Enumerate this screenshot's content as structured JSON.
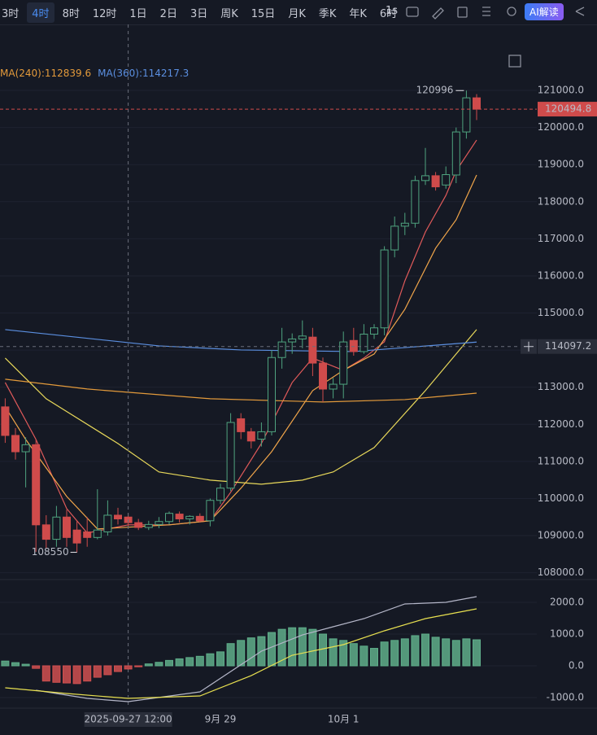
{
  "toolbar": {
    "items": [
      "3时",
      "4时",
      "8时",
      "12时",
      "1日",
      "2日",
      "3日",
      "周K",
      "15日",
      "月K",
      "季K",
      "年K",
      "6时"
    ],
    "active": 1,
    "speed": "1s",
    "ai": "AI解读"
  },
  "chart_data": [
    {
      "type": "candlestick",
      "categories": [
        null,
        null,
        null,
        null,
        null,
        null,
        null,
        null,
        null,
        null,
        null,
        null,
        null,
        null,
        null,
        null,
        null,
        null,
        null,
        null,
        null,
        "9月 29",
        null,
        null,
        null,
        null,
        null,
        null,
        null,
        null,
        null,
        null,
        null,
        "10月 1",
        null,
        null,
        null,
        null,
        null,
        null,
        null,
        null,
        null,
        null,
        null,
        null,
        null
      ],
      "open": [
        112470,
        111700,
        111260,
        111450,
        109290,
        108900,
        109500,
        109150,
        109100,
        108950,
        109100,
        109550,
        109500,
        109350,
        109220,
        109300,
        109380,
        109580,
        109450,
        109520,
        109400,
        109950,
        110280,
        112150,
        111800,
        111600,
        111800,
        113800,
        114220,
        114300,
        114350,
        113650,
        112950,
        113080,
        114260,
        113960,
        114430,
        114600,
        116700,
        117340,
        117420,
        118570,
        118700,
        118450,
        118720,
        119880,
        120800
      ],
      "high": [
        112700,
        111900,
        111650,
        111600,
        109550,
        109800,
        109700,
        109400,
        109500,
        110250,
        109950,
        109750,
        109600,
        109450,
        109400,
        109500,
        109650,
        109650,
        109550,
        109600,
        110000,
        110400,
        112300,
        112300,
        111900,
        112050,
        114000,
        114600,
        114450,
        114800,
        114600,
        113800,
        113250,
        114500,
        114600,
        114700,
        114700,
        116800,
        117600,
        117700,
        118700,
        119450,
        118800,
        118950,
        120000,
        120996.0,
        120900
      ],
      "low": [
        111500,
        111050,
        110300,
        108566.1,
        108650,
        108700,
        108700,
        108550,
        108700,
        108900,
        109000,
        109300,
        109250,
        109150,
        109150,
        109200,
        109300,
        109350,
        109300,
        109350,
        109250,
        109850,
        110200,
        111600,
        111350,
        111400,
        111700,
        113500,
        113900,
        114050,
        113300,
        112600,
        112700,
        112700,
        113850,
        113900,
        114300,
        114400,
        116500,
        117100,
        117300,
        118450,
        118300,
        118350,
        118500,
        119700,
        120200
      ],
      "close": [
        111700,
        111260,
        111450,
        109290,
        108900,
        109500,
        108950,
        108800,
        108950,
        109150,
        109550,
        109450,
        109350,
        109220,
        109300,
        109380,
        109600,
        109450,
        109520,
        109400,
        109950,
        110280,
        112050,
        111800,
        111550,
        111800,
        113800,
        114220,
        114300,
        114380,
        113650,
        112950,
        113080,
        114220,
        113960,
        114430,
        114600,
        116700,
        117340,
        117420,
        118570,
        118700,
        118400,
        118730,
        119880,
        120800,
        120494.8
      ],
      "up_color": "#4fa37f",
      "down_color": "#cf4b4b",
      "ylim": [
        107860,
        122120
      ],
      "yticks": [
        {
          "value": 121000,
          "label": "121000.0"
        },
        {
          "value": 120000,
          "label": "120000.0"
        },
        {
          "value": 119000,
          "label": "119000.0"
        },
        {
          "value": 118000,
          "label": "118000.0"
        },
        {
          "value": 117000,
          "label": "117000.0"
        },
        {
          "value": 116000,
          "label": "116000.0"
        },
        {
          "value": 115000,
          "label": "115000.0"
        },
        {
          "value": 114000,
          "label": "114000.0"
        },
        {
          "value": 113000,
          "label": "113000.0"
        },
        {
          "value": 112000,
          "label": "112000.0"
        },
        {
          "value": 111000,
          "label": "111000.0"
        },
        {
          "value": 110000,
          "label": "110000.0"
        },
        {
          "value": 109000,
          "label": "109000.0"
        },
        {
          "value": 108000,
          "label": "108000.0"
        }
      ],
      "series": [
        {
          "color": "#e05a5a",
          "x": [
            0,
            3,
            6,
            8,
            12,
            16,
            20,
            22,
            25,
            28,
            30,
            33,
            35,
            37,
            39,
            41,
            43,
            44,
            46
          ],
          "values": [
            113127,
            111592,
            109728,
            109070,
            109290,
            109290,
            109400,
            110167,
            111483,
            113127,
            113785,
            113456,
            113785,
            114224,
            115868,
            117184,
            118170,
            118828,
            119661
          ]
        },
        {
          "color": "#f0a54a",
          "x": [
            0,
            2,
            6,
            9,
            16,
            20,
            23,
            26,
            30,
            33,
            36,
            39,
            42,
            44,
            46
          ],
          "values": [
            112470,
            111592,
            110057,
            109180,
            109290,
            109400,
            110277,
            111263,
            112908,
            113456,
            113895,
            115101,
            116746,
            117513,
            118719
          ]
        },
        {
          "color": "#e8d85a",
          "x": [
            0,
            4,
            11,
            15,
            20,
            25,
            29,
            32,
            36,
            41,
            46
          ],
          "values": [
            113785,
            112689,
            111483,
            110715,
            110496,
            110386,
            110496,
            110715,
            111373,
            112908,
            114553
          ]
        },
        {
          "name": "MA(240):",
          "color": "#e39a3b",
          "x": [
            0,
            8,
            20,
            31,
            39,
            46
          ],
          "values": [
            113215,
            112952,
            112689,
            112601,
            112666,
            112839.6
          ]
        },
        {
          "name": "MA(360):",
          "color": "#5b8fe0",
          "x": [
            0,
            15,
            23,
            34,
            46
          ],
          "values": [
            114553,
            114114,
            114004,
            113960,
            114217.3
          ]
        }
      ],
      "crosshair": {
        "price": 114097.2,
        "time": "2025-09-27 12:00"
      }
    },
    {
      "type": "bar",
      "values": [
        150,
        100,
        50,
        -80,
        -480,
        -520,
        -540,
        -560,
        -480,
        -360,
        -280,
        -180,
        -100,
        -30,
        60,
        110,
        170,
        220,
        260,
        300,
        380,
        440,
        700,
        800,
        880,
        920,
        1050,
        1150,
        1200,
        1200,
        1150,
        1000,
        850,
        800,
        700,
        620,
        550,
        750,
        800,
        850,
        950,
        1000,
        900,
        850,
        800,
        850,
        820
      ],
      "up_color": "#5fae8a",
      "down_color": "#d05050",
      "ylim": [
        -1333,
        2641
      ],
      "yticks": [
        {
          "value": 2000,
          "label": "2000.0"
        },
        {
          "value": 1000,
          "label": "1000.0"
        },
        {
          "value": 0,
          "label": "0.0"
        },
        {
          "value": -1000,
          "label": "-1000.0"
        }
      ],
      "series": [
        {
          "color": "#b4b6c8",
          "x": [
            3,
            8,
            12,
            19,
            25,
            29,
            32,
            35,
            39,
            43,
            46
          ],
          "values": [
            -769,
            -1026,
            -1128,
            -821,
            462,
            974,
            1231,
            1487,
            1949,
            2000,
            2179
          ]
        },
        {
          "color": "#e8e050",
          "x": [
            0,
            6,
            12,
            19,
            24,
            28,
            33,
            37,
            41,
            46
          ],
          "values": [
            -692,
            -872,
            -1026,
            -949,
            -308,
            333,
            667,
            1103,
            1487,
            1795
          ]
        }
      ]
    }
  ]
}
